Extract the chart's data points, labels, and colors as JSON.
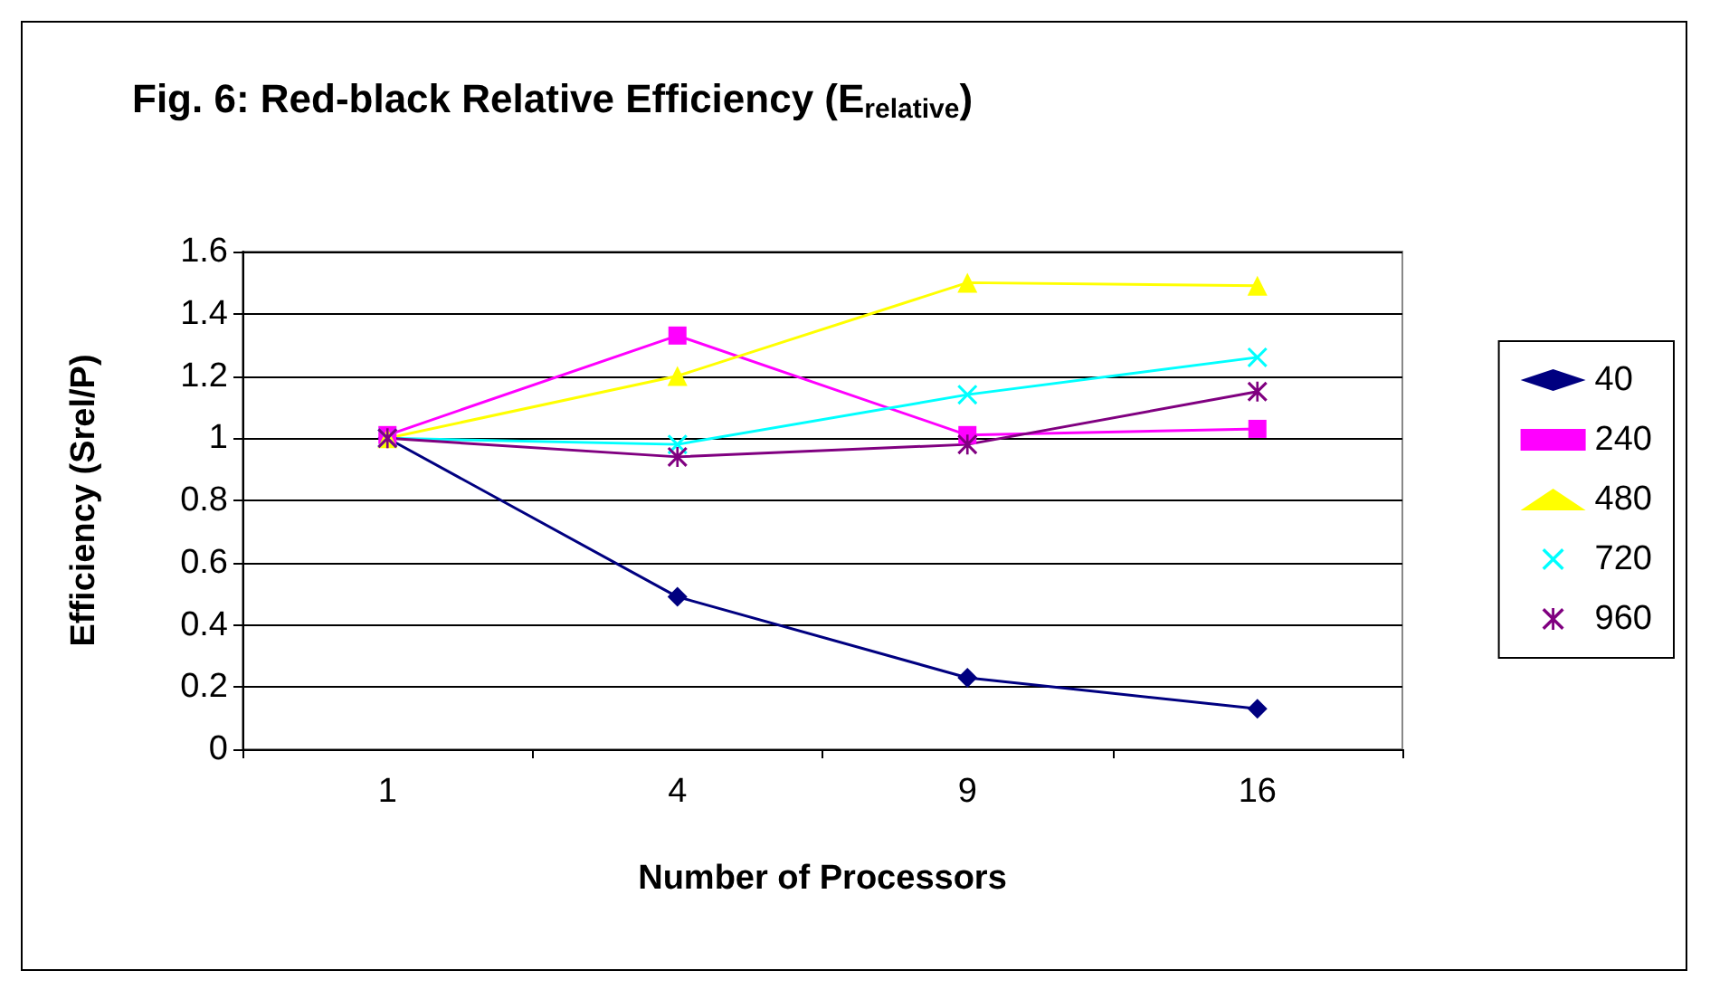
{
  "chart_data": {
    "type": "line",
    "title": "Fig. 6: Red-black Relative Efficiency (E$_{relative}$)",
    "xlabel": "Number of Processors",
    "ylabel": "Efficiency (Srel/P)",
    "categories": [
      "1",
      "4",
      "9",
      "16"
    ],
    "series": [
      {
        "name": "40",
        "color": "#000080",
        "marker": "diamond",
        "values": [
          1.0,
          0.49,
          0.23,
          0.13
        ]
      },
      {
        "name": "240",
        "color": "#ff00ff",
        "marker": "square",
        "values": [
          1.01,
          1.33,
          1.01,
          1.03
        ]
      },
      {
        "name": "480",
        "color": "#ffff00",
        "marker": "triangle",
        "values": [
          1.0,
          1.2,
          1.5,
          1.49
        ]
      },
      {
        "name": "720",
        "color": "#00ffff",
        "marker": "cross",
        "values": [
          1.0,
          0.98,
          1.14,
          1.26
        ]
      },
      {
        "name": "960",
        "color": "#800080",
        "marker": "star",
        "values": [
          1.0,
          0.94,
          0.98,
          1.15
        ]
      }
    ],
    "ylim": [
      0,
      1.6
    ],
    "yticks": [
      0,
      0.2,
      0.4,
      0.6,
      0.8,
      1,
      1.2,
      1.4,
      1.6
    ],
    "grid": "y",
    "legend": "right",
    "line_style": "solid"
  }
}
